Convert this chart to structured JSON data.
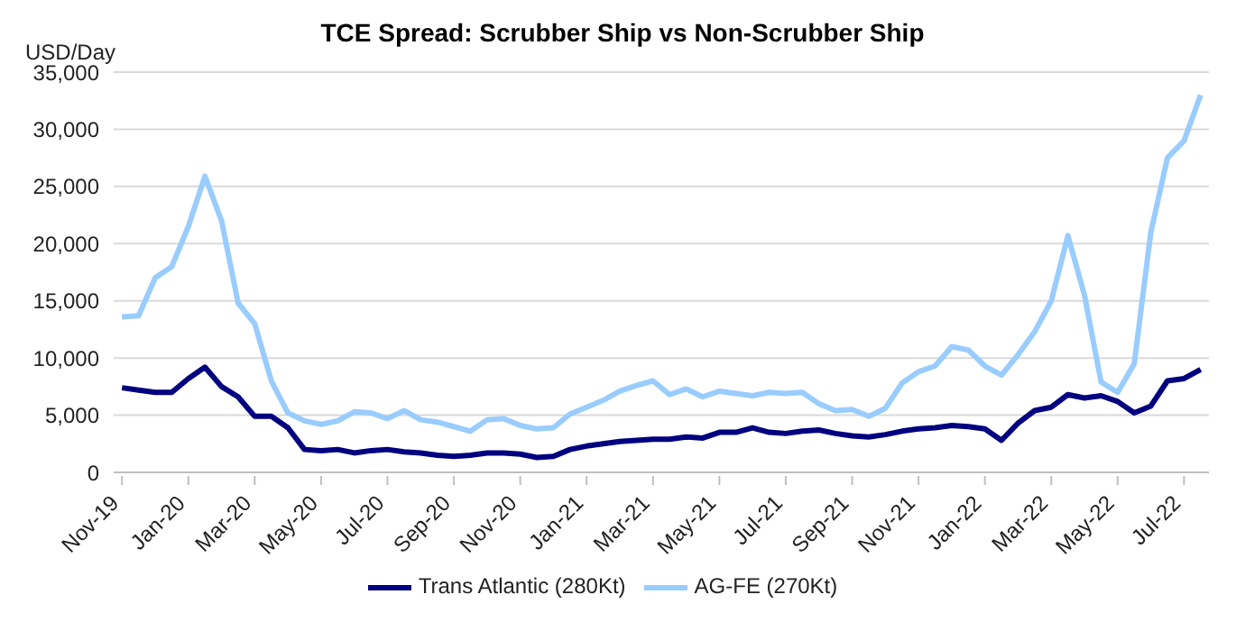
{
  "chart_data": {
    "type": "line",
    "title": "TCE Spread: Scrubber Ship vs Non-Scrubber Ship",
    "ylabel": "USD/Day",
    "categories": [
      "Nov-19",
      null,
      null,
      null,
      "Jan-20",
      null,
      null,
      null,
      "Mar-20",
      null,
      null,
      null,
      "May-20",
      null,
      null,
      null,
      "Jul-20",
      null,
      null,
      null,
      "Sep-20",
      null,
      null,
      null,
      "Nov-20",
      null,
      null,
      null,
      "Jan-21",
      null,
      null,
      null,
      "Mar-21",
      null,
      null,
      null,
      "May-21",
      null,
      null,
      null,
      "Jul-21",
      null,
      null,
      null,
      "Sep-21",
      null,
      null,
      null,
      "Nov-21",
      null,
      null,
      null,
      "Jan-22",
      null,
      null,
      null,
      "Mar-22",
      null,
      null,
      null,
      "May-22",
      null,
      null,
      null,
      "Jul-22",
      null
    ],
    "series": [
      {
        "name": "Trans Atlantic (280Kt)",
        "color": "#000080",
        "values": [
          7400,
          7200,
          7000,
          7000,
          8200,
          9200,
          7500,
          6600,
          4900,
          4900,
          3900,
          2000,
          1900,
          2000,
          1700,
          1900,
          2000,
          1800,
          1700,
          1500,
          1400,
          1500,
          1700,
          1700,
          1600,
          1300,
          1400,
          2000,
          2300,
          2500,
          2700,
          2800,
          2900,
          2900,
          3100,
          3000,
          3500,
          3500,
          3900,
          3500,
          3400,
          3600,
          3700,
          3400,
          3200,
          3100,
          3300,
          3600,
          3800,
          3900,
          4100,
          4000,
          3800,
          2800,
          4300,
          5400,
          5700,
          6800,
          6500,
          6700,
          6200,
          5200,
          5800,
          8000,
          8200,
          9000
        ]
      },
      {
        "name": "AG-FE (270Kt)",
        "color": "#99ccff",
        "values": [
          13600,
          13700,
          17000,
          18000,
          21500,
          25900,
          22000,
          14800,
          13000,
          8000,
          5200,
          4500,
          4200,
          4500,
          5300,
          5200,
          4700,
          5400,
          4600,
          4400,
          4000,
          3600,
          4600,
          4700,
          4100,
          3800,
          3900,
          5100,
          5700,
          6300,
          7100,
          7600,
          8000,
          6800,
          7300,
          6600,
          7100,
          6900,
          6700,
          7000,
          6900,
          7000,
          6000,
          5400,
          5500,
          4900,
          5600,
          7800,
          8800,
          9300,
          11000,
          10700,
          9300,
          8500,
          10300,
          12300,
          15000,
          20700,
          15500,
          7900,
          7000,
          9500,
          21000,
          27500,
          29000,
          33000
        ]
      }
    ],
    "ylim": [
      0,
      35000
    ],
    "yticks": [
      0,
      {
        "value": 5000,
        "label": "5,000"
      },
      {
        "value": 10000,
        "label": "10,000"
      },
      {
        "value": 15000,
        "label": "15,000"
      },
      {
        "value": 20000,
        "label": "20,000"
      },
      {
        "value": 25000,
        "label": "25,000"
      },
      {
        "value": 30000,
        "label": "30,000"
      },
      {
        "value": 35000,
        "label": "35,000"
      }
    ],
    "grid": "y",
    "legend": "bottom",
    "marker": "none",
    "line_style": "solid"
  }
}
